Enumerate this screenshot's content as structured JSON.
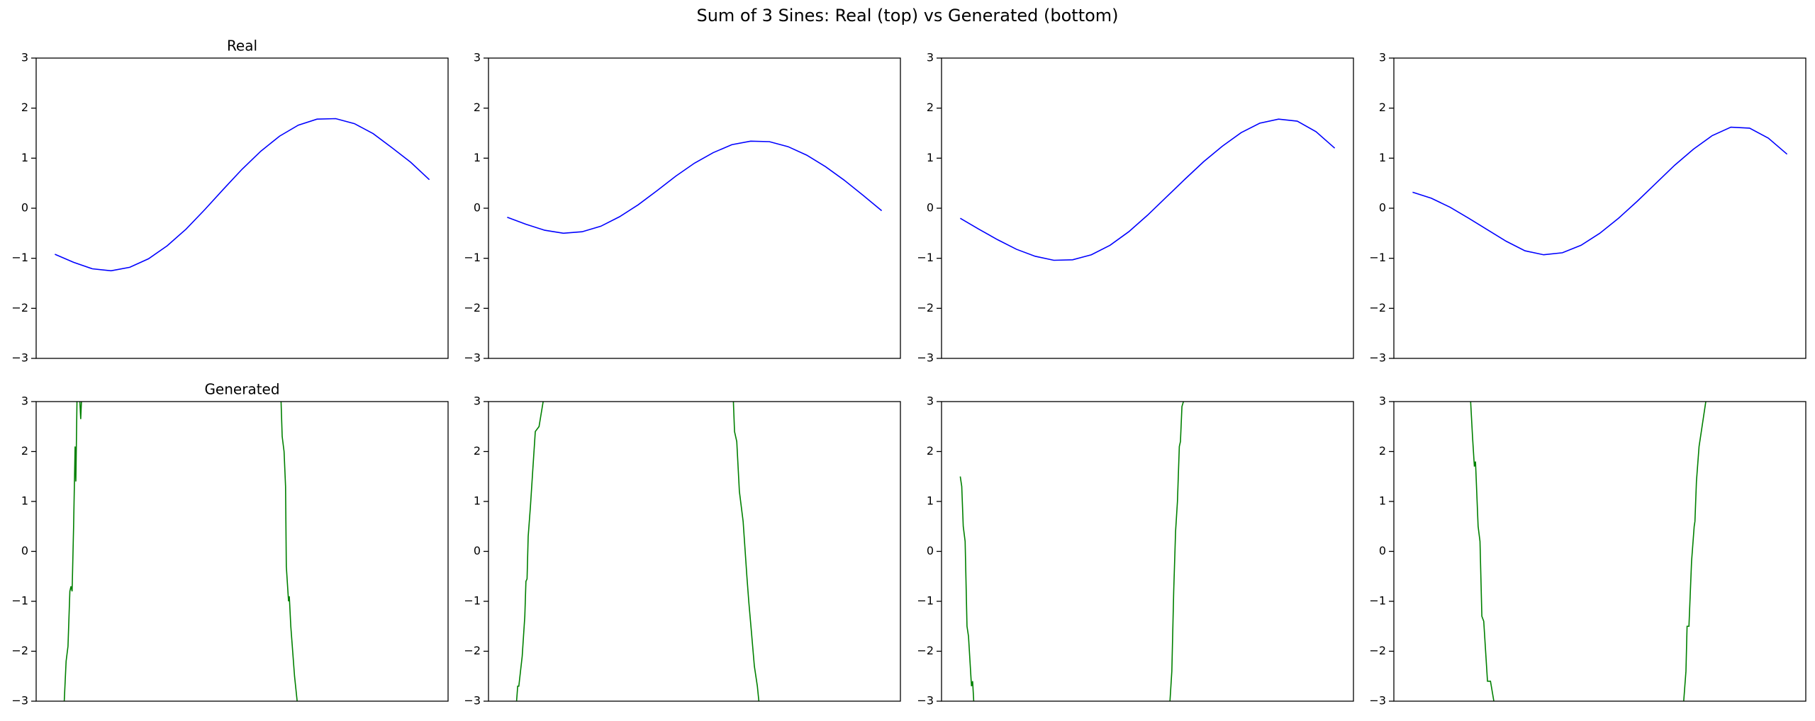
{
  "title": "Sum of 3 Sines: Real (top) vs Generated (bottom)",
  "chart_data": [
    {
      "type": "line",
      "title": "Real",
      "xlim": [
        -0.05,
        1.05
      ],
      "ylim": [
        -3,
        3
      ],
      "yticks": [
        {
          "value": -3,
          "label": "−3"
        },
        {
          "value": -2,
          "label": "−2"
        },
        {
          "value": -1,
          "label": "−1"
        },
        0,
        1,
        2,
        3
      ],
      "x": [
        0,
        0.05,
        0.1,
        0.15,
        0.2,
        0.25,
        0.3,
        0.35,
        0.4,
        0.45,
        0.5,
        0.55,
        0.6,
        0.65,
        0.7,
        0.75,
        0.8,
        0.85,
        0.9,
        0.95,
        1
      ],
      "series": [
        {
          "color": "#0000ff",
          "values": [
            -0.92,
            -1.08,
            -1.21,
            -1.25,
            -1.18,
            -1.01,
            -0.75,
            -0.42,
            -0.03,
            0.38,
            0.78,
            1.14,
            1.44,
            1.66,
            1.78,
            1.79,
            1.69,
            1.49,
            1.21,
            0.92,
            0.57
          ]
        }
      ]
    },
    {
      "type": "line",
      "xlim": [
        -0.05,
        1.05
      ],
      "ylim": [
        -3,
        3
      ],
      "yticks": [
        {
          "value": -3,
          "label": "−3"
        },
        {
          "value": -2,
          "label": "−2"
        },
        {
          "value": -1,
          "label": "−1"
        },
        0,
        1,
        2,
        3
      ],
      "x": [
        0,
        0.05,
        0.1,
        0.15,
        0.2,
        0.25,
        0.3,
        0.35,
        0.4,
        0.45,
        0.5,
        0.55,
        0.6,
        0.65,
        0.7,
        0.75,
        0.8,
        0.85,
        0.9,
        0.95,
        1
      ],
      "series": [
        {
          "color": "#0000ff",
          "values": [
            -0.18,
            -0.32,
            -0.44,
            -0.5,
            -0.47,
            -0.36,
            -0.17,
            0.07,
            0.35,
            0.64,
            0.9,
            1.11,
            1.27,
            1.34,
            1.33,
            1.23,
            1.06,
            0.83,
            0.56,
            0.26,
            -0.05
          ]
        }
      ]
    },
    {
      "type": "line",
      "xlim": [
        -0.05,
        1.05
      ],
      "ylim": [
        -3,
        3
      ],
      "yticks": [
        {
          "value": -3,
          "label": "−3"
        },
        {
          "value": -2,
          "label": "−2"
        },
        {
          "value": -1,
          "label": "−1"
        },
        0,
        1,
        2,
        3
      ],
      "x": [
        0,
        0.05,
        0.1,
        0.15,
        0.2,
        0.25,
        0.3,
        0.35,
        0.4,
        0.45,
        0.5,
        0.55,
        0.6,
        0.65,
        0.7,
        0.75,
        0.8,
        0.85,
        0.9,
        0.95,
        1
      ],
      "series": [
        {
          "color": "#0000ff",
          "values": [
            -0.2,
            -0.42,
            -0.63,
            -0.82,
            -0.96,
            -1.04,
            -1.03,
            -0.93,
            -0.74,
            -0.47,
            -0.14,
            0.22,
            0.58,
            0.93,
            1.24,
            1.51,
            1.7,
            1.78,
            1.74,
            1.53,
            1.2
          ]
        }
      ]
    },
    {
      "type": "line",
      "xlim": [
        -0.05,
        1.05
      ],
      "ylim": [
        -3,
        3
      ],
      "yticks": [
        {
          "value": -3,
          "label": "−3"
        },
        {
          "value": -2,
          "label": "−2"
        },
        {
          "value": -1,
          "label": "−1"
        },
        0,
        1,
        2,
        3
      ],
      "x": [
        0,
        0.05,
        0.1,
        0.15,
        0.2,
        0.25,
        0.3,
        0.35,
        0.4,
        0.45,
        0.5,
        0.55,
        0.6,
        0.65,
        0.7,
        0.75,
        0.8,
        0.85,
        0.9,
        0.95,
        1
      ],
      "series": [
        {
          "color": "#0000ff",
          "values": [
            0.32,
            0.2,
            0.02,
            -0.2,
            -0.43,
            -0.66,
            -0.85,
            -0.93,
            -0.89,
            -0.74,
            -0.5,
            -0.2,
            0.14,
            0.5,
            0.86,
            1.18,
            1.45,
            1.62,
            1.6,
            1.4,
            1.08
          ]
        }
      ]
    },
    {
      "type": "line",
      "title": "Generated",
      "xlim": [
        -0.05,
        1.05
      ],
      "ylim": [
        -3,
        3
      ],
      "yticks": [
        {
          "value": -3,
          "label": "−3"
        },
        {
          "value": -2,
          "label": "−2"
        },
        {
          "value": -1,
          "label": "−1"
        },
        0,
        1,
        2,
        3
      ],
      "x": [
        0.022,
        0.025,
        0.03,
        0.035,
        0.04,
        0.043,
        0.046,
        0.05,
        0.054,
        0.056,
        0.059,
        0.062,
        0.066,
        0.069,
        0.072,
        0.3,
        0.6,
        0.604,
        0.607,
        0.612,
        0.616,
        0.618,
        0.624,
        0.626,
        0.63,
        0.64,
        0.647,
        0.65
      ],
      "series": [
        {
          "color": "#008000",
          "values": [
            -3.3,
            -3,
            -2.2,
            -1.9,
            -0.8,
            -0.7,
            -0.8,
            0.5,
            2.1,
            1.4,
            3,
            3.3,
            3.1,
            2.65,
            3.2,
            null,
            3.3,
            3,
            2.3,
            2,
            1.3,
            -0.3,
            -1,
            -0.9,
            -1.5,
            -2.5,
            -3,
            -3.3
          ]
        }
      ]
    },
    {
      "type": "line",
      "xlim": [
        -0.05,
        1.05
      ],
      "ylim": [
        -3,
        3
      ],
      "yticks": [
        {
          "value": -3,
          "label": "−3"
        },
        {
          "value": -2,
          "label": "−2"
        },
        {
          "value": -1,
          "label": "−1"
        },
        0,
        1,
        2,
        3
      ],
      "x": [
        0.022,
        0.025,
        0.028,
        0.031,
        0.04,
        0.047,
        0.05,
        0.053,
        0.056,
        0.062,
        0.068,
        0.075,
        0.085,
        0.096,
        0.1,
        0.3,
        0.6,
        0.604,
        0.607,
        0.613,
        0.62,
        0.63,
        0.64,
        0.645,
        0.652,
        0.66,
        0.668,
        0.672,
        0.675
      ],
      "series": [
        {
          "color": "#008000",
          "values": [
            -3.3,
            -3,
            -2.7,
            -2.7,
            -2.1,
            -1.3,
            -0.6,
            -0.55,
            0.3,
            0.9,
            1.6,
            2.4,
            2.5,
            3,
            3.3,
            null,
            3.3,
            3,
            2.4,
            2.2,
            1.2,
            0.6,
            -0.5,
            -1,
            -1.6,
            -2.3,
            -2.7,
            -3,
            -3.3
          ]
        }
      ]
    },
    {
      "type": "line",
      "xlim": [
        -0.05,
        1.05
      ],
      "ylim": [
        -3,
        3
      ],
      "yticks": [
        {
          "value": -3,
          "label": "−3"
        },
        {
          "value": -2,
          "label": "−2"
        },
        {
          "value": -1,
          "label": "−1"
        },
        0,
        1,
        2,
        3
      ],
      "x": [
        0,
        0.004,
        0.008,
        0.013,
        0.018,
        0.022,
        0.03,
        0.033,
        0.036,
        0.038,
        0.3,
        0.556,
        0.56,
        0.565,
        0.57,
        0.575,
        0.58,
        0.585,
        0.588,
        0.592,
        0.596,
        0.6
      ],
      "series": [
        {
          "color": "#008000",
          "values": [
            1.5,
            1.3,
            0.5,
            0.2,
            -1.5,
            -1.7,
            -2.7,
            -2.6,
            -3,
            -3.3,
            null,
            -3.3,
            -3,
            -2.4,
            -0.8,
            0.4,
            1,
            2.1,
            2.2,
            2.9,
            3,
            3.3
          ]
        }
      ]
    },
    {
      "type": "line",
      "xlim": [
        -0.05,
        1.05
      ],
      "ylim": [
        -3,
        3
      ],
      "yticks": [
        {
          "value": -3,
          "label": "−3"
        },
        {
          "value": -2,
          "label": "−2"
        },
        {
          "value": -1,
          "label": "−1"
        },
        0,
        1,
        2,
        3
      ],
      "x": [
        0.152,
        0.155,
        0.16,
        0.165,
        0.168,
        0.175,
        0.18,
        0.185,
        0.19,
        0.2,
        0.208,
        0.217,
        0.22,
        0.5,
        0.72,
        0.724,
        0.73,
        0.733,
        0.738,
        0.745,
        0.752,
        0.754,
        0.758,
        0.765,
        0.775,
        0.783,
        0.787
      ],
      "series": [
        {
          "color": "#008000",
          "values": [
            3.3,
            3,
            2.3,
            1.7,
            1.8,
            0.5,
            0.2,
            -1.3,
            -1.4,
            -2.6,
            -2.6,
            -3,
            -3.3,
            null,
            -3.3,
            -3,
            -2.4,
            -1.5,
            -1.5,
            -0.2,
            0.5,
            0.6,
            1.4,
            2.1,
            2.6,
            3,
            3.3
          ]
        }
      ]
    }
  ]
}
